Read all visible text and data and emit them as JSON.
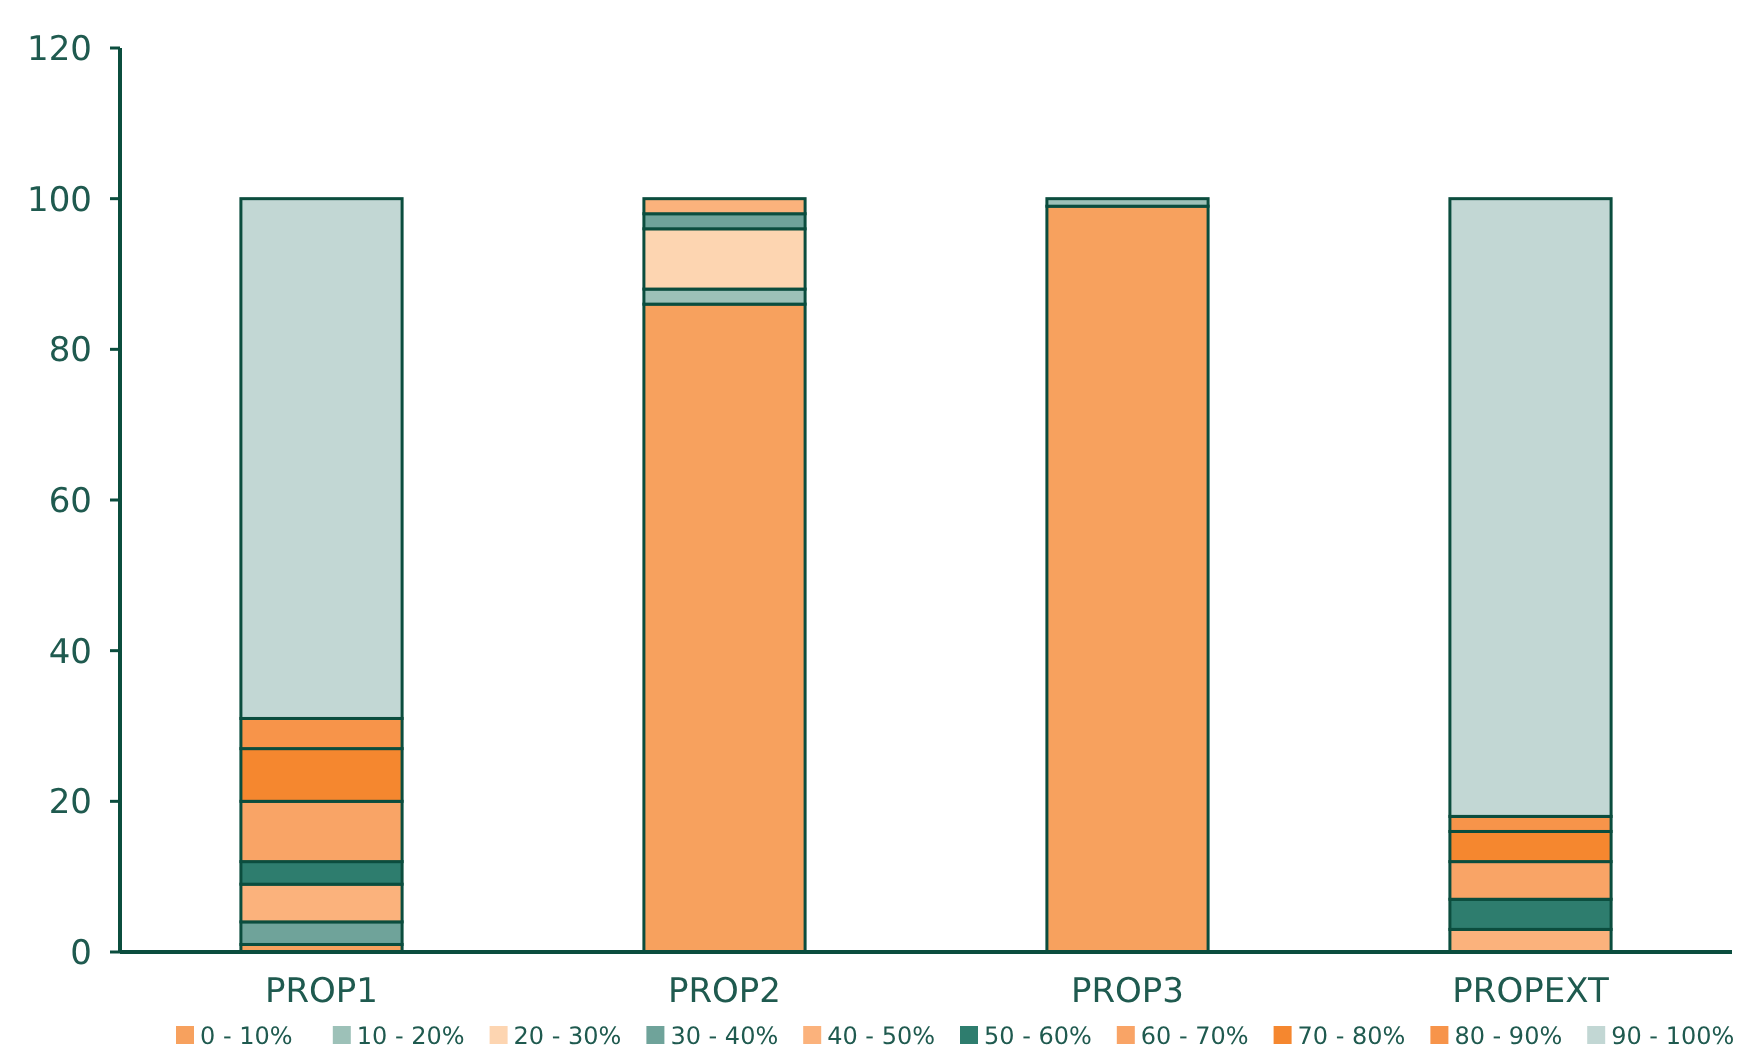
{
  "chart_data": {
    "type": "bar",
    "stacked": true,
    "categories": [
      "PROP1",
      "PROP2",
      "PROP3",
      "PROPEXT"
    ],
    "series": [
      {
        "name": "0 - 10%",
        "color": "#f7a15e",
        "values": [
          1,
          86,
          99,
          0
        ]
      },
      {
        "name": "10 - 20%",
        "color": "#9dc1b8",
        "values": [
          0,
          2,
          1,
          0
        ]
      },
      {
        "name": "20 - 30%",
        "color": "#fdd5b1",
        "values": [
          0,
          8,
          0,
          0
        ]
      },
      {
        "name": "30 - 40%",
        "color": "#6fa39a",
        "values": [
          3,
          2,
          0,
          0
        ]
      },
      {
        "name": "40 - 50%",
        "color": "#fbb27c",
        "values": [
          5,
          2,
          0,
          3
        ]
      },
      {
        "name": "50 - 60%",
        "color": "#2e7d6e",
        "values": [
          3,
          0,
          0,
          4
        ]
      },
      {
        "name": "60 - 70%",
        "color": "#f9a466",
        "values": [
          8,
          0,
          0,
          5
        ]
      },
      {
        "name": "70 - 80%",
        "color": "#f5872f",
        "values": [
          7,
          0,
          0,
          4
        ]
      },
      {
        "name": "80 - 90%",
        "color": "#f7944a",
        "values": [
          4,
          0,
          0,
          2
        ]
      },
      {
        "name": "90 - 100%",
        "color": "#c2d7d4",
        "values": [
          69,
          0,
          0,
          82
        ]
      }
    ],
    "ylim": [
      0,
      120
    ],
    "yticks": [
      0,
      20,
      40,
      60,
      80,
      100,
      120
    ],
    "grid": false,
    "legend": "bottom"
  }
}
